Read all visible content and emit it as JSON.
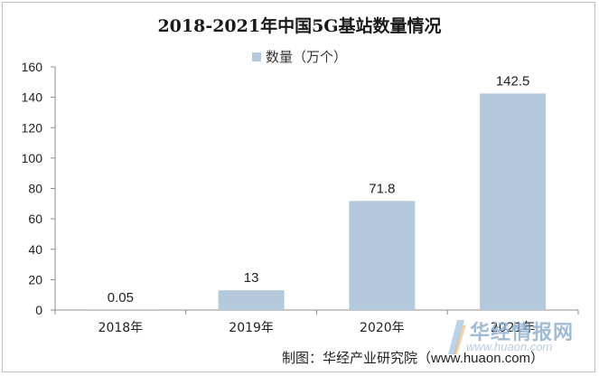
{
  "chart_data": {
    "type": "bar",
    "title": "2018-2021年中国5G基站数量情况",
    "categories": [
      "2018年",
      "2019年",
      "2020年",
      "2021年"
    ],
    "series": [
      {
        "name": "数量（万个）",
        "values": [
          0.05,
          13,
          71.8,
          142.5
        ]
      }
    ],
    "data_labels": [
      "0.05",
      "13",
      "71.8",
      "142.5"
    ],
    "ylim": [
      0,
      160
    ],
    "yticks": [
      0,
      20,
      40,
      60,
      80,
      100,
      120,
      140,
      160
    ],
    "grid": false,
    "legend_position": "top",
    "bar_color": "#b4c9dc"
  },
  "footer": {
    "credit": "制图：华经产业研究院（www.huaon.com）"
  },
  "watermark": {
    "brand": "华经情报网",
    "url": "www.huaon.com"
  }
}
